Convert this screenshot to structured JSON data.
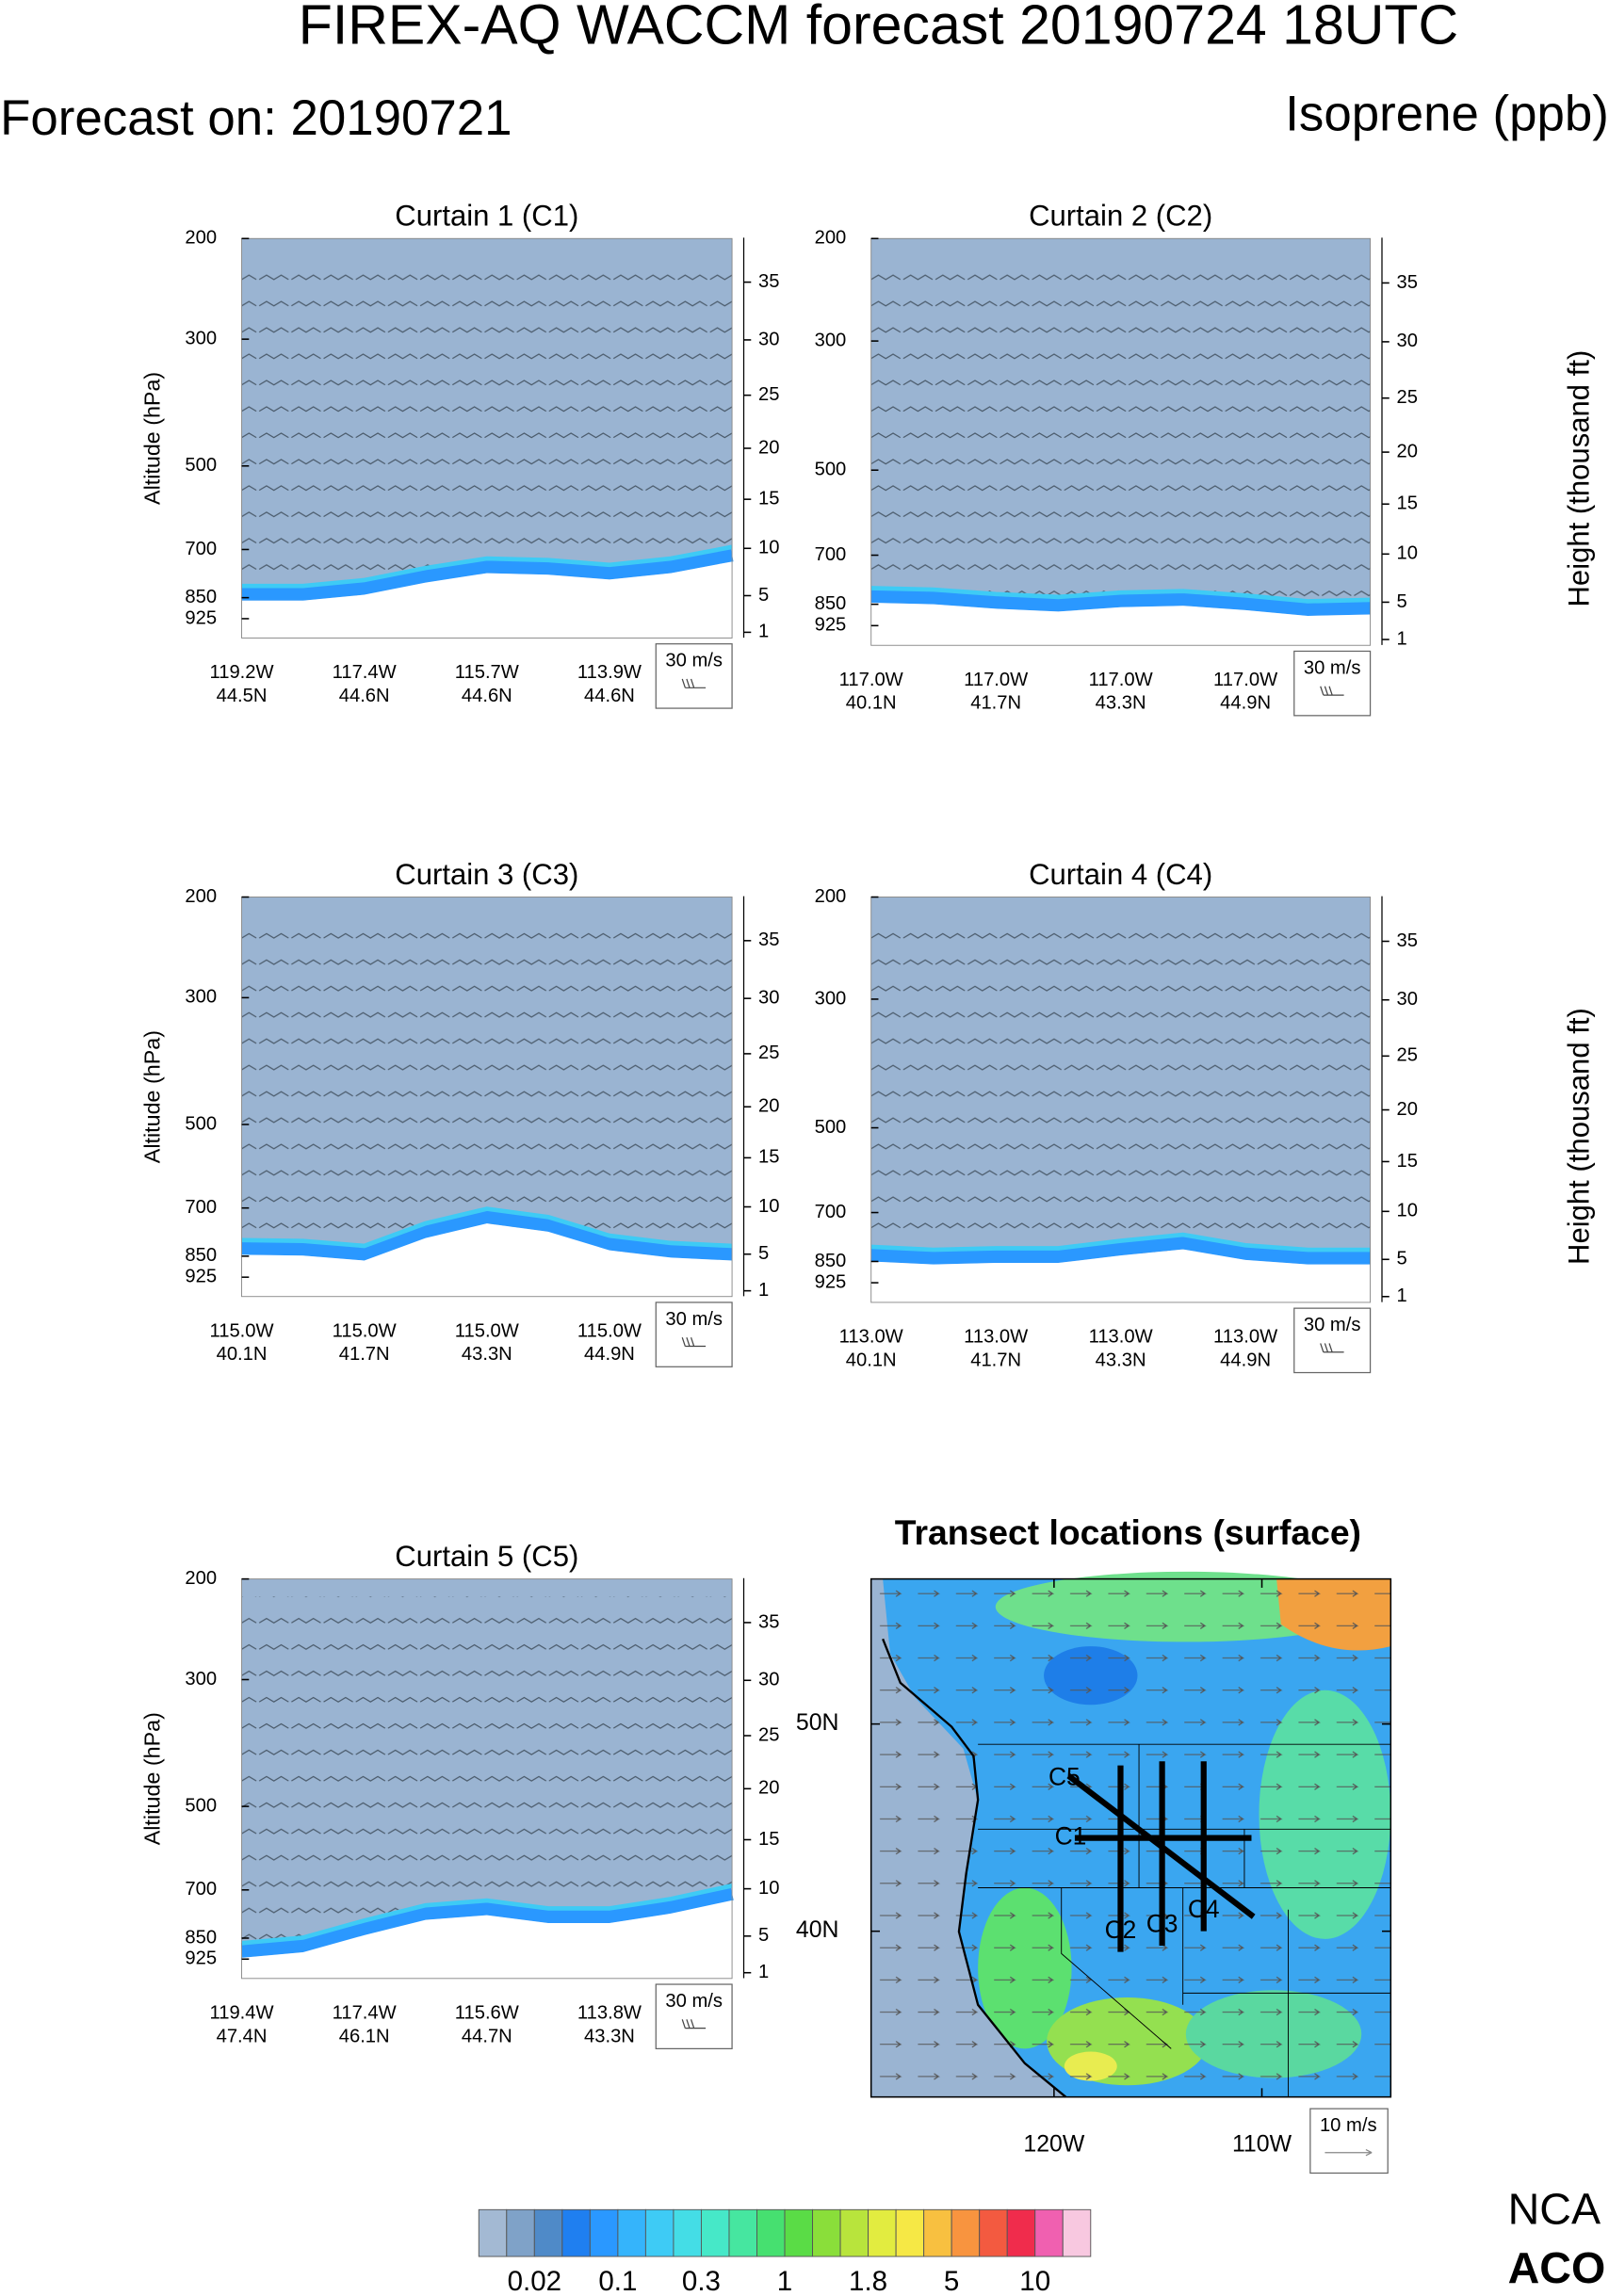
{
  "header": {
    "title": "FIREX-AQ WACCM forecast 20190724 18UTC",
    "forecast": "Forecast on: 20190721",
    "variable": "Isoprene (ppb)"
  },
  "chart_data": [
    {
      "type": "curtain",
      "title": "Curtain 1 (C1)",
      "y_label": "Altitude (hPa)",
      "log_scale": true,
      "ylim": [
        1000,
        200
      ],
      "yticks": [
        200,
        300,
        500,
        700,
        850,
        925
      ],
      "y2lim": [
        0.4,
        38.7
      ],
      "y2ticks": [
        1,
        5,
        10,
        15,
        20,
        25,
        30,
        35
      ],
      "x_labels": [
        [
          "119.2W",
          "44.5N"
        ],
        [
          "117.4W",
          "44.6N"
        ],
        [
          "115.7W",
          "44.6N"
        ],
        [
          "113.9W",
          "44.6N"
        ]
      ],
      "wind_key": "30 m/s",
      "surface": [
        860,
        860,
        840,
        800,
        770,
        775,
        790,
        770,
        735
      ]
    },
    {
      "type": "curtain",
      "title": "Curtain 2 (C2)",
      "y2_label": "Height (thousand ft)",
      "log_scale": true,
      "ylim": [
        1000,
        200
      ],
      "yticks": [
        200,
        300,
        500,
        700,
        850,
        925
      ],
      "y2lim": [
        0.4,
        38.7
      ],
      "y2ticks": [
        1,
        5,
        10,
        15,
        20,
        25,
        30,
        35
      ],
      "x_labels": [
        [
          "117.0W",
          "40.1N"
        ],
        [
          "117.0W",
          "41.7N"
        ],
        [
          "117.0W",
          "43.3N"
        ],
        [
          "117.0W",
          "44.9N"
        ]
      ],
      "wind_key": "30 m/s",
      "surface": [
        845,
        850,
        865,
        875,
        860,
        855,
        870,
        890,
        885
      ]
    },
    {
      "type": "curtain",
      "title": "Curtain 3 (C3)",
      "y_label": "Altitude (hPa)",
      "log_scale": true,
      "ylim": [
        1000,
        200
      ],
      "yticks": [
        200,
        300,
        500,
        700,
        850,
        925
      ],
      "y2lim": [
        0.4,
        38.7
      ],
      "y2ticks": [
        1,
        5,
        10,
        15,
        20,
        25,
        30,
        35
      ],
      "x_labels": [
        [
          "115.0W",
          "40.1N"
        ],
        [
          "115.0W",
          "41.7N"
        ],
        [
          "115.0W",
          "43.3N"
        ],
        [
          "115.0W",
          "44.9N"
        ]
      ],
      "wind_key": "30 m/s",
      "surface": [
        845,
        848,
        865,
        790,
        745,
        770,
        830,
        855,
        865
      ]
    },
    {
      "type": "curtain",
      "title": "Curtain 4 (C4)",
      "y2_label": "Height (thousand ft)",
      "log_scale": true,
      "ylim": [
        1000,
        200
      ],
      "yticks": [
        200,
        300,
        500,
        700,
        850,
        925
      ],
      "y2lim": [
        0.4,
        38.7
      ],
      "y2ticks": [
        1,
        5,
        10,
        15,
        20,
        25,
        30,
        35
      ],
      "x_labels": [
        [
          "113.0W",
          "40.1N"
        ],
        [
          "113.0W",
          "41.7N"
        ],
        [
          "113.0W",
          "43.3N"
        ],
        [
          "113.0W",
          "44.9N"
        ]
      ],
      "wind_key": "30 m/s",
      "surface": [
        850,
        860,
        855,
        855,
        830,
        810,
        845,
        860,
        860
      ]
    },
    {
      "type": "curtain",
      "title": "Curtain 5 (C5)",
      "y_label": "Altitude (hPa)",
      "log_scale": true,
      "ylim": [
        1000,
        200
      ],
      "yticks": [
        200,
        300,
        500,
        700,
        850,
        925
      ],
      "y2lim": [
        0.4,
        38.7
      ],
      "y2ticks": [
        1,
        5,
        10,
        15,
        20,
        25,
        30,
        35
      ],
      "x_labels": [
        [
          "119.4W",
          "47.4N"
        ],
        [
          "117.4W",
          "46.1N"
        ],
        [
          "115.6W",
          "44.7N"
        ],
        [
          "113.8W",
          "43.3N"
        ]
      ],
      "wind_key": "30 m/s",
      "surface": [
        920,
        900,
        840,
        790,
        775,
        800,
        800,
        770,
        730
      ]
    },
    {
      "type": "map",
      "title": "Transect locations (surface)",
      "xlim": [
        -128.8,
        -103.8
      ],
      "ylim": [
        32,
        57
      ],
      "xticks": [
        {
          "value": -120,
          "label": "120W"
        },
        {
          "value": -110,
          "label": "110W"
        }
      ],
      "yticks": [
        {
          "value": 50,
          "label": "50N"
        },
        {
          "value": 40,
          "label": "40N"
        }
      ],
      "wind_key": "10 m/s",
      "transects": [
        {
          "name": "C1",
          "lon": [
            -119,
            -110.5
          ],
          "lat": [
            44.5,
            44.5
          ]
        },
        {
          "name": "C2",
          "lon": [
            -116.8,
            -116.8
          ],
          "lat": [
            48,
            39
          ]
        },
        {
          "name": "C3",
          "lon": [
            -114.8,
            -114.8
          ],
          "lat": [
            48.2,
            39.3
          ]
        },
        {
          "name": "C4",
          "lon": [
            -112.8,
            -112.8
          ],
          "lat": [
            48.2,
            40
          ]
        },
        {
          "name": "C5",
          "lon": [
            -119.3,
            -110.4
          ],
          "lat": [
            47.5,
            40.7
          ]
        }
      ]
    }
  ],
  "colorbar": {
    "colors": [
      "#a3b9d3",
      "#7fa2c8",
      "#4f8ac8",
      "#1f7ff0",
      "#2a98ff",
      "#35b4fb",
      "#3ecbf5",
      "#44dde6",
      "#46e8c8",
      "#46e6a0",
      "#46e070",
      "#5adc46",
      "#8ade3a",
      "#b8e43c",
      "#e2ec40",
      "#f6e845",
      "#f8c040",
      "#f8943f",
      "#f35a40",
      "#f02c4c",
      "#f060b0",
      "#f8c8e0"
    ],
    "ticks": [
      0.02,
      0.1,
      0.3,
      1,
      1.8,
      5,
      10
    ]
  },
  "logo": [
    "NCA",
    "ACO"
  ]
}
